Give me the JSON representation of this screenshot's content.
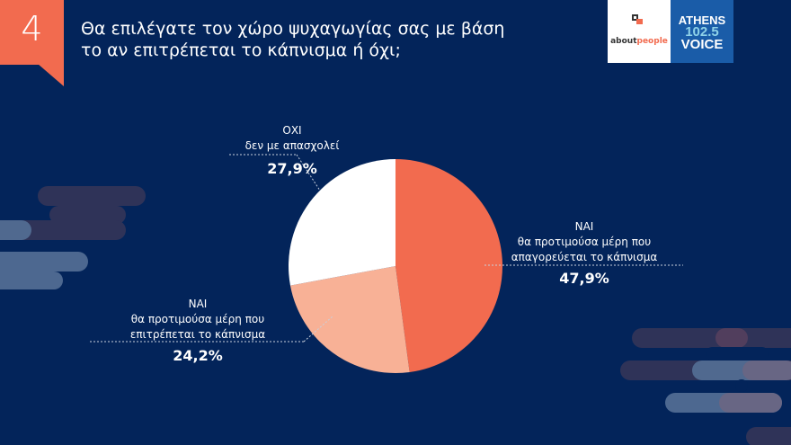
{
  "header": {
    "number": "4",
    "title_line1": "Θα επιλέγατε τον χώρο ψυχαγωγίας σας με βάση",
    "title_line2": "το αν επιτρέπεται το κάπνισμα ή όχι;"
  },
  "logos": {
    "aboutpeople_a": "about",
    "aboutpeople_b": "people",
    "athens_1": "ATHENS",
    "athens_2": "102.5",
    "athens_3": "VOICE"
  },
  "chart_data": {
    "type": "pie",
    "title": "Θα επιλέγατε τον χώρο ψυχαγωγίας σας με βάση το αν επιτρέπεται το κάπνισμα ή όχι;",
    "start": "top, clockwise",
    "slices": [
      {
        "label_1": "ΝΑΙ",
        "label_2": "θα προτιμούσα μέρη που",
        "label_3": "απαγορεύεται το κάπνισμα",
        "value": 47.9,
        "value_label": "47,9%",
        "color": "#f26b4f"
      },
      {
        "label_1": "ΝΑΙ",
        "label_2": "θα προτιμούσα μέρη που",
        "label_3": "επιτρέπεται το κάπνισμα",
        "value": 24.2,
        "value_label": "24,2%",
        "color": "#f8b196"
      },
      {
        "label_1": "ΟΧΙ",
        "label_2": "δεν με απασχολεί",
        "label_3": "",
        "value": 27.9,
        "value_label": "27,9%",
        "color": "#ffffff"
      }
    ]
  }
}
